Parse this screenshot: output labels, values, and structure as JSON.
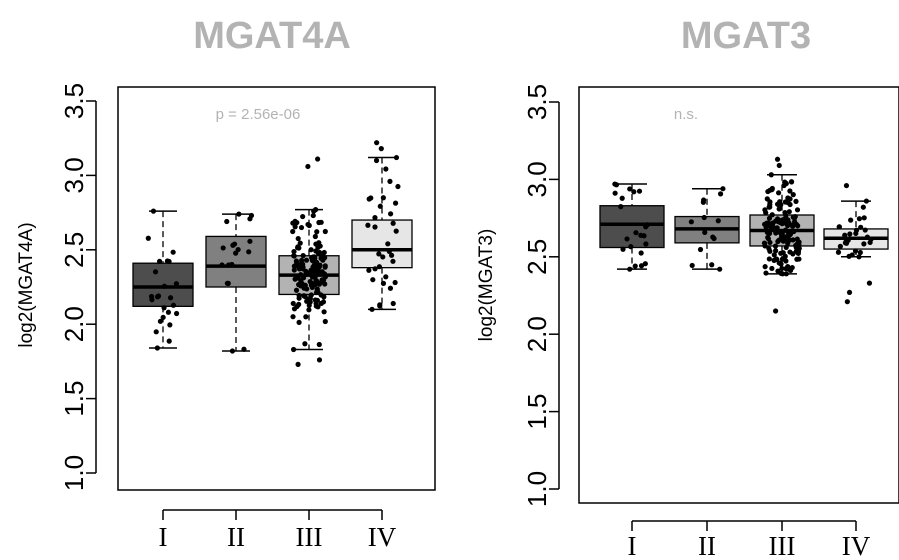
{
  "chart_data": [
    {
      "type": "box",
      "title": "MGAT4A",
      "ylabel": "log2(MGAT4A)",
      "annotation": "p = 2.56e-06",
      "ylim": [
        0.95,
        3.6
      ],
      "yticks": [
        "1.0",
        "1.5",
        "2.0",
        "2.5",
        "3.0",
        "3.5"
      ],
      "categories": [
        "I",
        "II",
        "III",
        "IV"
      ],
      "boxes": [
        {
          "category": "I",
          "whisker_low": 1.84,
          "q1": 2.12,
          "median": 2.25,
          "q3": 2.41,
          "whisker_high": 2.76,
          "fill": "#4d4d4d",
          "n_points": 24
        },
        {
          "category": "II",
          "whisker_low": 1.82,
          "q1": 2.25,
          "median": 2.39,
          "q3": 2.59,
          "whisker_high": 2.74,
          "fill": "#808080",
          "n_points": 18
        },
        {
          "category": "III",
          "whisker_low": 1.83,
          "q1": 2.2,
          "median": 2.33,
          "q3": 2.46,
          "whisker_high": 2.77,
          "fill": "#b3b3b3",
          "n_points": 150
        },
        {
          "category": "IV",
          "whisker_low": 2.1,
          "q1": 2.38,
          "median": 2.5,
          "q3": 2.7,
          "whisker_high": 3.12,
          "fill": "#e6e6e6",
          "n_points": 32
        }
      ]
    },
    {
      "type": "box",
      "title": "MGAT3",
      "ylabel": "log2(MGAT3)",
      "annotation": "n.s.",
      "ylim": [
        0.95,
        3.6
      ],
      "yticks": [
        "1.0",
        "1.5",
        "2.0",
        "2.5",
        "3.0",
        "3.5"
      ],
      "categories": [
        "I",
        "II",
        "III",
        "IV"
      ],
      "boxes": [
        {
          "category": "I",
          "whisker_low": 2.42,
          "q1": 2.56,
          "median": 2.71,
          "q3": 2.83,
          "whisker_high": 2.97,
          "fill": "#4d4d4d",
          "n_points": 22
        },
        {
          "category": "II",
          "whisker_low": 2.42,
          "q1": 2.59,
          "median": 2.68,
          "q3": 2.76,
          "whisker_high": 2.94,
          "fill": "#808080",
          "n_points": 14
        },
        {
          "category": "III",
          "whisker_low": 2.39,
          "q1": 2.57,
          "median": 2.67,
          "q3": 2.77,
          "whisker_high": 3.03,
          "fill": "#b3b3b3",
          "n_points": 150
        },
        {
          "category": "IV",
          "whisker_low": 2.5,
          "q1": 2.55,
          "median": 2.62,
          "q3": 2.68,
          "whisker_high": 2.86,
          "fill": "#e6e6e6",
          "n_points": 28
        }
      ]
    }
  ]
}
